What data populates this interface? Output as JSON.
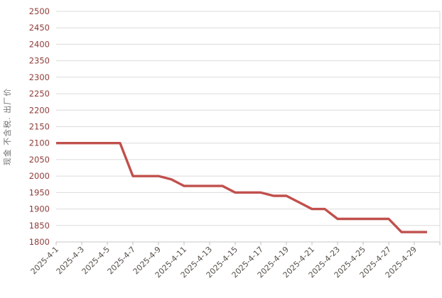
{
  "chart": {
    "colors": {
      "background": "#FFFFFF",
      "line": "#C0504D",
      "grid": "#DBDBDB",
      "axis_line": "#C9C7C7",
      "tick_mark": "#C0BEBE",
      "y_tick_label": "#8E3D3A",
      "x_tick_label": "#56504A",
      "axis_title": "#6F6F6F"
    }
  },
  "chart_data": {
    "type": "line",
    "title": "",
    "xlabel": "",
    "ylabel": "现金 不含税. 出厂价",
    "ylim": [
      1800,
      2500
    ],
    "y_tick_step": 50,
    "y_tick_labels": [
      "1800",
      "1850",
      "1900",
      "1950",
      "2000",
      "2050",
      "2100",
      "2150",
      "2200",
      "2250",
      "2300",
      "2350",
      "2400",
      "2450",
      "2500"
    ],
    "grid": true,
    "legend": false,
    "x": [
      "2025-4-1",
      "2025-4-2",
      "2025-4-3",
      "2025-4-4",
      "2025-4-5",
      "2025-4-6",
      "2025-4-7",
      "2025-4-8",
      "2025-4-9",
      "2025-4-10",
      "2025-4-11",
      "2025-4-12",
      "2025-4-13",
      "2025-4-14",
      "2025-4-15",
      "2025-4-16",
      "2025-4-17",
      "2025-4-18",
      "2025-4-19",
      "2025-4-20",
      "2025-4-21",
      "2025-4-22",
      "2025-4-23",
      "2025-4-24",
      "2025-4-25",
      "2025-4-26",
      "2025-4-27",
      "2025-4-28",
      "2025-4-29",
      "2025-4-30"
    ],
    "x_tick_labels": [
      "2025-4-1",
      "2025-4-3",
      "2025-4-5",
      "2025-4-7",
      "2025-4-9",
      "2025-4-11",
      "2025-4-13",
      "2025-4-15",
      "2025-4-17",
      "2025-4-19",
      "2025-4-21",
      "2025-4-23",
      "2025-4-25",
      "2025-4-27",
      "2025-4-29"
    ],
    "series": [
      {
        "name": "出厂价",
        "values": [
          2100,
          2100,
          2100,
          2100,
          2100,
          2100,
          2000,
          2000,
          2000,
          1990,
          1970,
          1970,
          1970,
          1970,
          1950,
          1950,
          1950,
          1940,
          1940,
          1920,
          1900,
          1900,
          1870,
          1870,
          1870,
          1870,
          1870,
          1830,
          1830,
          1830
        ]
      }
    ]
  }
}
